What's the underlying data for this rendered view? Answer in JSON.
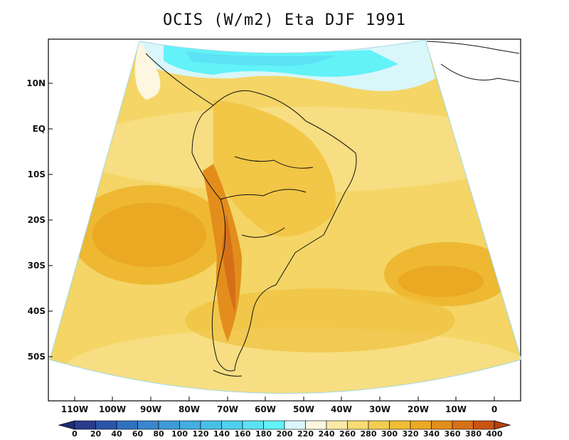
{
  "title": "OCIS (W/m2) Eta DJF 1991",
  "lat_labels": [
    "10N",
    "EQ",
    "10S",
    "20S",
    "30S",
    "40S",
    "50S"
  ],
  "lon_labels": [
    "110W",
    "100W",
    "90W",
    "80W",
    "70W",
    "60W",
    "50W",
    "40W",
    "30W",
    "20W",
    "10W",
    "0"
  ],
  "colorbar": {
    "levels": [
      "0",
      "20",
      "40",
      "60",
      "80",
      "100",
      "120",
      "140",
      "160",
      "180",
      "200",
      "220",
      "240",
      "260",
      "280",
      "300",
      "320",
      "340",
      "360",
      "380",
      "400"
    ],
    "colors": [
      "#2a3c8c",
      "#2a55a8",
      "#2e70bf",
      "#3a86cf",
      "#3e9bd8",
      "#43aee0",
      "#48c0e6",
      "#4fd0ee",
      "#5ce2f4",
      "#62f2f8",
      "#d9f6fb",
      "#fdf6e0",
      "#fbe9a6",
      "#f7dc74",
      "#f3cd52",
      "#efbc34",
      "#eba822",
      "#e38e1c",
      "#d57018",
      "#c95414"
    ]
  }
}
